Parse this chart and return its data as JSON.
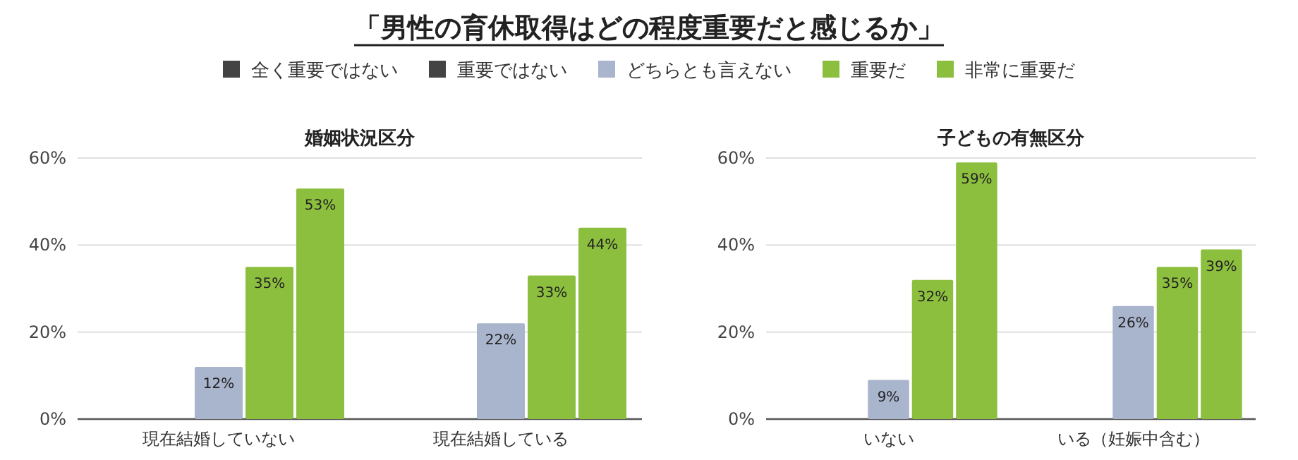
{
  "chart_data": [
    {
      "type": "bar",
      "title": "「男性の育休取得はどの程度重要だと感じるか」",
      "subtitle": "婚姻状況区分",
      "categories": [
        "現在結婚していない",
        "現在結婚している"
      ],
      "series": [
        {
          "name": "全く重要ではない",
          "color": "#434343",
          "values": [
            0,
            0
          ],
          "value_labels": [
            null,
            null
          ]
        },
        {
          "name": "重要ではない",
          "color": "#434343",
          "values": [
            0,
            0
          ],
          "value_labels": [
            null,
            null
          ]
        },
        {
          "name": "どちらとも言えない",
          "color": "#a9b4cd",
          "values": [
            12,
            22
          ],
          "value_labels": [
            "12%",
            "22%"
          ]
        },
        {
          "name": "重要だ",
          "color": "#8dbf3f",
          "values": [
            35,
            33
          ],
          "value_labels": [
            "35%",
            "33%"
          ]
        },
        {
          "name": "非常に重要だ",
          "color": "#8dbf3f",
          "values": [
            53,
            44
          ],
          "value_labels": [
            "53%",
            "44%"
          ]
        }
      ],
      "ylim": [
        0,
        60
      ],
      "yticks": [
        {
          "value": 0,
          "label": "0%"
        },
        {
          "value": 20,
          "label": "20%"
        },
        {
          "value": 40,
          "label": "40%"
        },
        {
          "value": 60,
          "label": "60%"
        }
      ],
      "grid": "y",
      "legend": "top"
    },
    {
      "type": "bar",
      "subtitle": "子どもの有無区分",
      "categories": [
        "いない",
        "いる（妊娠中含む）"
      ],
      "series": [
        {
          "color": "#434343",
          "values": [
            0,
            0
          ],
          "value_labels": [
            null,
            null
          ]
        },
        {
          "color": "#434343",
          "values": [
            0,
            0
          ],
          "value_labels": [
            null,
            null
          ]
        },
        {
          "color": "#a9b4cd",
          "values": [
            9,
            26
          ],
          "value_labels": [
            "9%",
            "26%"
          ]
        },
        {
          "color": "#8dbf3f",
          "values": [
            32,
            35
          ],
          "value_labels": [
            "32%",
            "35%"
          ]
        },
        {
          "color": "#8dbf3f",
          "values": [
            59,
            39
          ],
          "value_labels": [
            "59%",
            "39%"
          ]
        }
      ],
      "ylim": [
        0,
        60
      ],
      "yticks": [
        {
          "value": 0,
          "label": "0%"
        },
        {
          "value": 20,
          "label": "20%"
        },
        {
          "value": 40,
          "label": "40%"
        },
        {
          "value": 60,
          "label": "60%"
        }
      ],
      "grid": "y"
    }
  ]
}
